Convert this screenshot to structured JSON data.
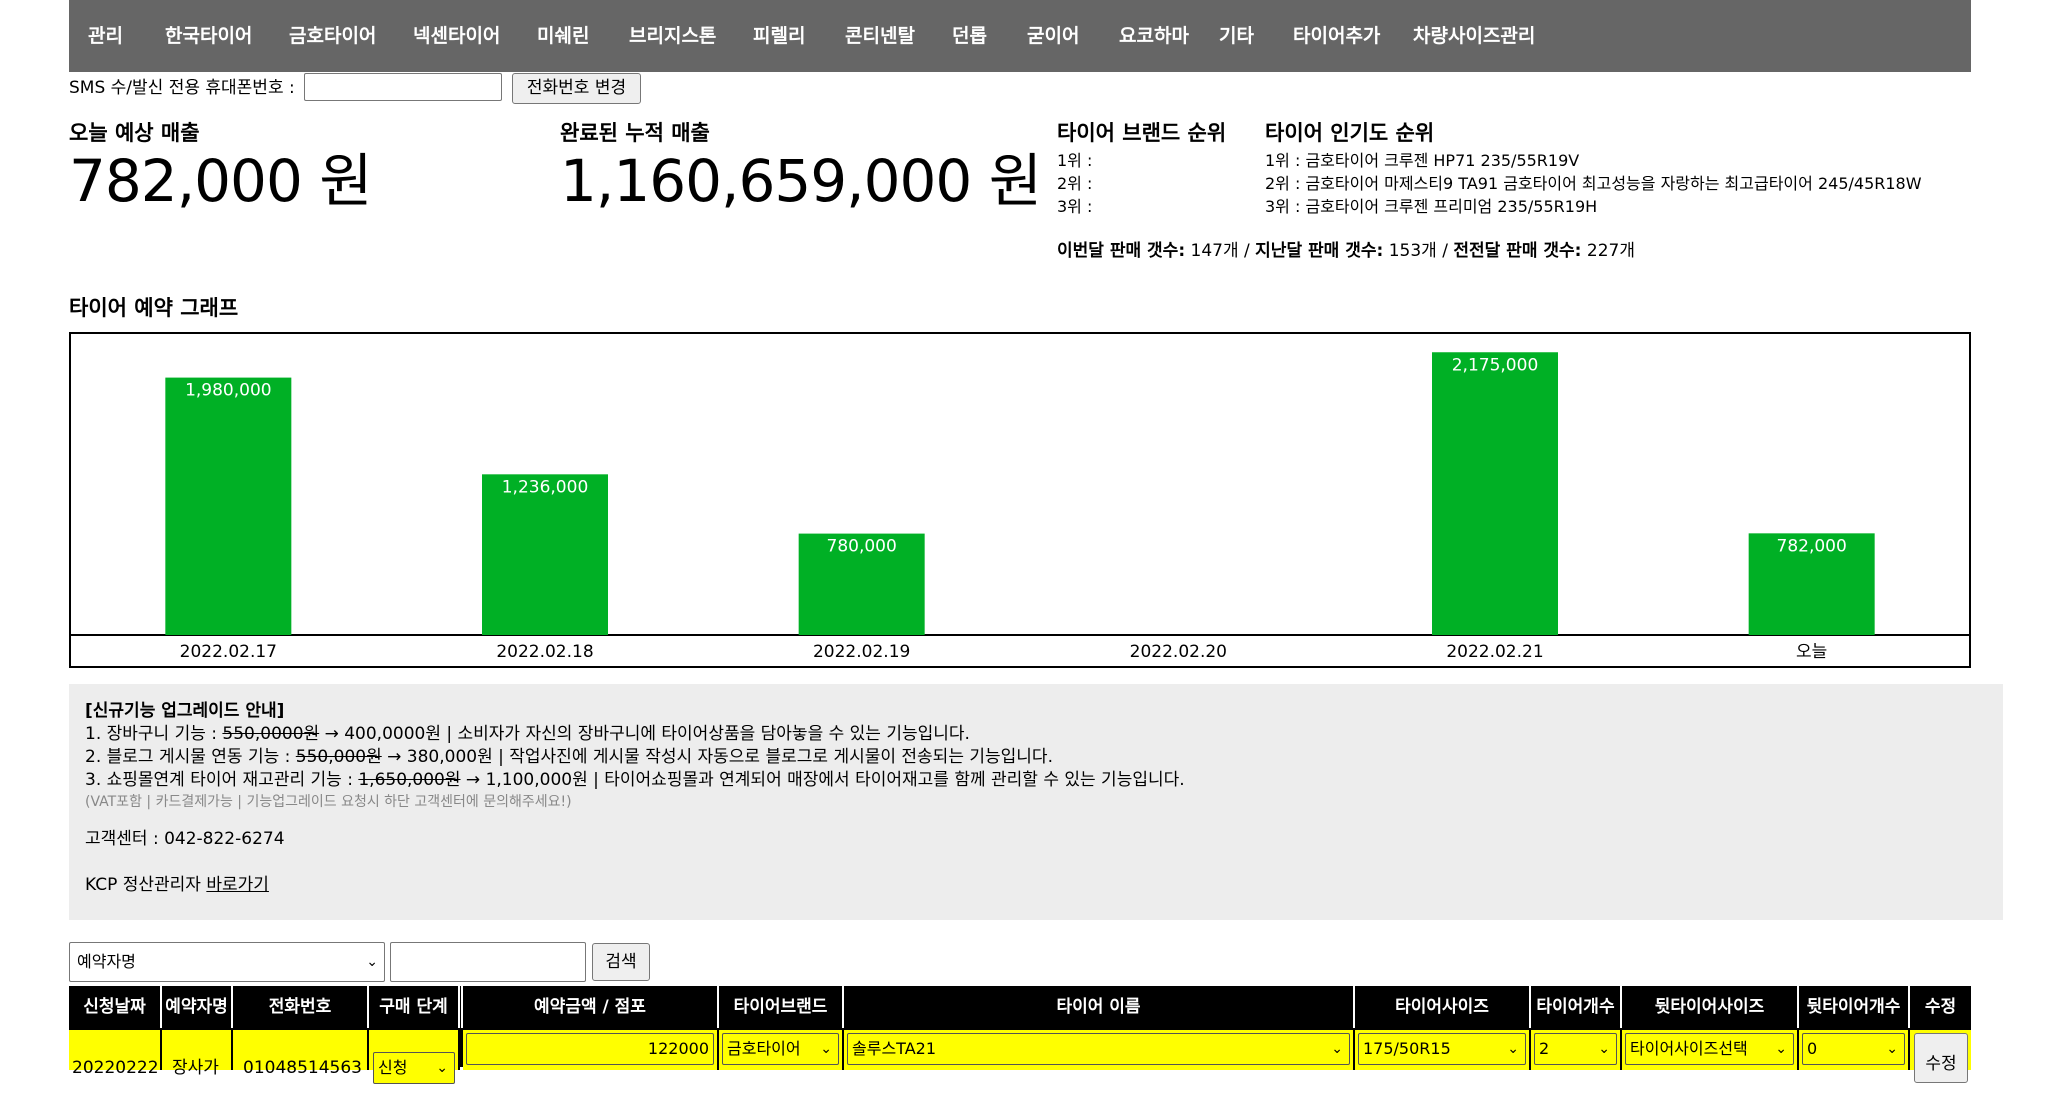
{
  "nav": {
    "items": [
      "관리",
      "한국타이어",
      "금호타이어",
      "넥센타이어",
      "미쉐린",
      "브리지스톤",
      "피렐리",
      "콘티넨탈",
      "던롭",
      "굳이어",
      "요코하마",
      "기타",
      "타이어추가",
      "차량사이즈관리"
    ]
  },
  "sms": {
    "label": "SMS 수/발신 전용 휴대폰번호 :",
    "input_value": "",
    "button_label": "전화번호 변경"
  },
  "summary": {
    "today_label": "오늘 예상 매출",
    "today_value": "782,000 원",
    "total_label": "완료된 누적 매출",
    "total_value": "1,160,659,000 원"
  },
  "brand_rank": {
    "title": "타이어 브랜드 순위",
    "lines": [
      "1위 :",
      "2위 :",
      "3위 :"
    ]
  },
  "popular_rank": {
    "title": "타이어 인기도 순위",
    "lines": [
      "1위 : 금호타이어 크루젠 HP71 235/55R19V",
      "2위 : 금호타이어 마제스티9 TA91 금호타이어 최고성능을 자랑하는 최고급타이어 245/45R18W",
      "3위 : 금호타이어 크루젠 프리미엄 235/55R19H"
    ]
  },
  "sales_counts": {
    "this_month_label": "이번달 판매 갯수:",
    "this_month_value": "147개",
    "last_month_label": "지난달 판매 갯수:",
    "last_month_value": "153개",
    "two_months_label": "전전달 판매 갯수:",
    "two_months_value": "227개"
  },
  "chart_title": "타이어 예약 그래프",
  "chart_data": {
    "type": "bar",
    "categories": [
      "2022.02.17",
      "2022.02.18",
      "2022.02.19",
      "2022.02.20",
      "2022.02.21",
      "오늘"
    ],
    "values": [
      1980000,
      1236000,
      780000,
      0,
      2175000,
      782000
    ],
    "value_labels": [
      "1,980,000",
      "1,236,000",
      "780,000",
      "",
      "2,175,000",
      "782,000"
    ],
    "bar_color": "#00b025",
    "ylim": [
      0,
      2300000
    ],
    "grid": false
  },
  "notice": {
    "title": "[신규기능 업그레이드 안내]",
    "line1_pre": "1. 장바구니 기능 : ",
    "line1_old": "550,0000원",
    "line1_post": " → 400,0000원 | 소비자가 자신의 장바구니에 타이어상품을 담아놓을 수 있는 기능입니다.",
    "line2_pre": "2. 블로그 게시물 연동 기능 : ",
    "line2_old": "550,000원",
    "line2_post": " → 380,000원 | 작업사진에 게시물 작성시 자동으로 블로그로 게시물이 전송되는 기능입니다.",
    "line3_pre": "3. 쇼핑몰연계 타이어 재고관리 기능 : ",
    "line3_old": "1,650,000원",
    "line3_post": " → 1,100,000원 | 타이어쇼핑몰과 연계되어 매장에서 타이어재고를 함께 관리할 수 있는 기능입니다.",
    "small": "(VAT포함 | 카드결제가능 | 기능업그레이드 요청시 하단 고객센터에 문의해주세요!)",
    "support": "고객센터 : 042-822-6274",
    "kcp_pre": "KCP 정산관리자 ",
    "kcp_link": "바로가기"
  },
  "search": {
    "select_value": "예약자명",
    "input_value": "",
    "button_label": "검색"
  },
  "table": {
    "headers": [
      "신청날짜",
      "예약자명",
      "전화번호",
      "구매 단계",
      "예약금액 / 점포",
      "타이어브랜드",
      "타이어 이름",
      "타이어사이즈",
      "타이어개수",
      "뒷타이어사이즈",
      "뒷타이어개수",
      "수정"
    ],
    "row": {
      "date": "20220222",
      "name": "장사가",
      "phone": "01048514563",
      "stage": "신청",
      "amount": "122000",
      "brand": "금호타이어",
      "tire_name": "솔루스TA21",
      "size": "175/50R15",
      "count": "2",
      "rear_size": "타이어사이즈선택",
      "rear_count": "0",
      "edit_label": "수정"
    }
  }
}
